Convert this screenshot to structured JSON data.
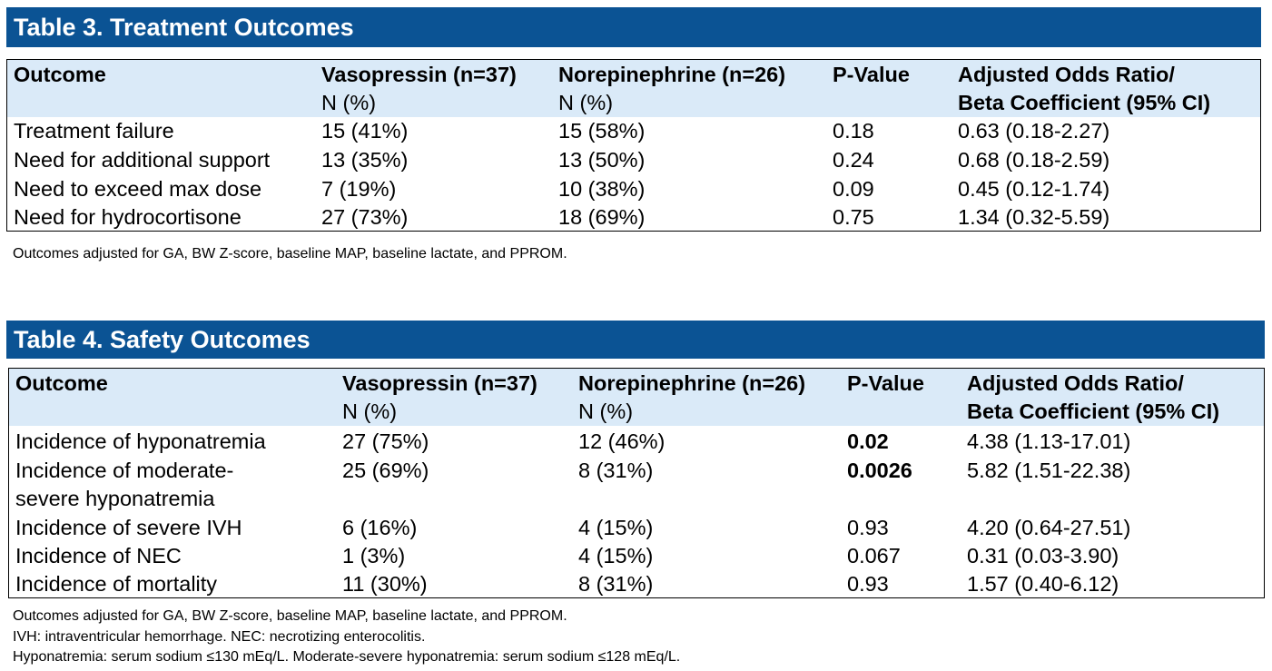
{
  "table3": {
    "title": "Table 3. Treatment Outcomes",
    "headers": {
      "outcome": "Outcome",
      "vaso": "Vasopressin (n=37)",
      "vaso_sub": "N (%)",
      "norepi": "Norepinephrine (n=26)",
      "norepi_sub": "N (%)",
      "pvalue": "P-Value",
      "aor1": "Adjusted Odds Ratio/",
      "aor2": "Beta Coefficient (95% CI)"
    },
    "rows": [
      {
        "outcome": "Treatment failure",
        "vaso": "15 (41%)",
        "norepi": "15 (58%)",
        "pvalue": "0.18",
        "aor": "0.63 (0.18-2.27)"
      },
      {
        "outcome": "Need for additional support",
        "vaso": "13 (35%)",
        "norepi": "13 (50%)",
        "pvalue": "0.24",
        "aor": "0.68 (0.18-2.59)"
      },
      {
        "outcome": "Need to exceed max dose",
        "vaso": "7 (19%)",
        "norepi": "10 (38%)",
        "pvalue": "0.09",
        "aor": "0.45 (0.12-1.74)"
      },
      {
        "outcome": "Need for hydrocortisone",
        "vaso": "27 (73%)",
        "norepi": "18 (69%)",
        "pvalue": "0.75",
        "aor": "1.34 (0.32-5.59)"
      }
    ],
    "footnote": "Outcomes adjusted for GA, BW Z-score, baseline MAP, baseline lactate, and PPROM."
  },
  "table4": {
    "title": "Table 4. Safety Outcomes",
    "headers": {
      "outcome": "Outcome",
      "vaso": "Vasopressin (n=37)",
      "vaso_sub": "N (%)",
      "norepi": "Norepinephrine (n=26)",
      "norepi_sub": "N (%)",
      "pvalue": "P-Value",
      "aor1": "Adjusted Odds Ratio/",
      "aor2": "Beta Coefficient (95% CI)"
    },
    "rows": [
      {
        "outcome": "Incidence of hyponatremia",
        "vaso": "27 (75%)",
        "norepi": "12 (46%)",
        "pvalue": "0.02",
        "aor": "4.38 (1.13-17.01)"
      },
      {
        "outcome": "Incidence of moderate-",
        "outcome2": "severe hyponatremia",
        "vaso": "25 (69%)",
        "norepi": "8 (31%)",
        "pvalue": "0.0026",
        "aor": "5.82 (1.51-22.38)"
      },
      {
        "outcome": "Incidence of severe IVH",
        "vaso": "6 (16%)",
        "norepi": "4 (15%)",
        "pvalue": "0.93",
        "aor": "4.20 (0.64-27.51)"
      },
      {
        "outcome": "Incidence of NEC",
        "vaso": "1 (3%)",
        "norepi": "4 (15%)",
        "pvalue": "0.067",
        "aor": "0.31 (0.03-3.90)"
      },
      {
        "outcome": "Incidence of mortality",
        "vaso": "11 (30%)",
        "norepi": "8 (31%)",
        "pvalue": "0.93",
        "aor": "1.57 (0.40-6.12)"
      }
    ],
    "footnotes": [
      "Outcomes adjusted for GA, BW Z-score, baseline MAP, baseline lactate, and PPROM.",
      "IVH: intraventricular hemorrhage. NEC: necrotizing enterocolitis.",
      "Hyponatremia: serum sodium ≤130 mEq/L. Moderate-severe hyponatremia: serum sodium ≤128 mEq/L."
    ]
  }
}
